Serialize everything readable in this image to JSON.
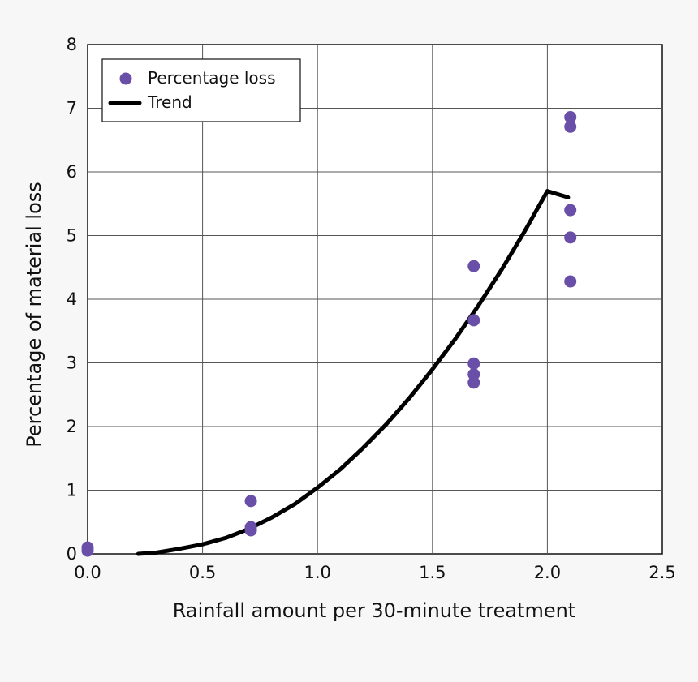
{
  "chart_data": {
    "type": "scatter",
    "title": "",
    "xlabel": "Rainfall amount per 30-minute treatment",
    "ylabel": "Percentage of material loss",
    "xlim": [
      0,
      2.5
    ],
    "ylim": [
      0,
      8
    ],
    "x_ticks": [
      "0.0",
      "0.5",
      "1.0",
      "1.5",
      "2.0",
      "2.5"
    ],
    "x_tick_values": [
      0,
      0.5,
      1.0,
      1.5,
      2.0,
      2.5
    ],
    "y_ticks": [
      "0",
      "1",
      "2",
      "3",
      "4",
      "5",
      "6",
      "7",
      "8"
    ],
    "y_tick_values": [
      0,
      1,
      2,
      3,
      4,
      5,
      6,
      7,
      8
    ],
    "grid": true,
    "legend_position": "top-left",
    "series": [
      {
        "name": "Percentage loss",
        "kind": "scatter",
        "color": "#6a4fa8",
        "points": [
          {
            "x": 0.0,
            "y": 0.05
          },
          {
            "x": 0.0,
            "y": 0.1
          },
          {
            "x": 0.71,
            "y": 0.83
          },
          {
            "x": 0.71,
            "y": 0.42
          },
          {
            "x": 0.71,
            "y": 0.37
          },
          {
            "x": 1.68,
            "y": 4.52
          },
          {
            "x": 1.68,
            "y": 3.67
          },
          {
            "x": 1.68,
            "y": 2.99
          },
          {
            "x": 1.68,
            "y": 2.82
          },
          {
            "x": 1.68,
            "y": 2.69
          },
          {
            "x": 2.1,
            "y": 6.86
          },
          {
            "x": 2.1,
            "y": 6.71
          },
          {
            "x": 2.1,
            "y": 5.4
          },
          {
            "x": 2.1,
            "y": 4.97
          },
          {
            "x": 2.1,
            "y": 4.28
          }
        ]
      },
      {
        "name": "Trend",
        "kind": "line",
        "color": "#000000",
        "points": [
          {
            "x": 0.22,
            "y": 0.0
          },
          {
            "x": 0.3,
            "y": 0.02
          },
          {
            "x": 0.4,
            "y": 0.08
          },
          {
            "x": 0.5,
            "y": 0.15
          },
          {
            "x": 0.6,
            "y": 0.25
          },
          {
            "x": 0.7,
            "y": 0.39
          },
          {
            "x": 0.8,
            "y": 0.57
          },
          {
            "x": 0.9,
            "y": 0.78
          },
          {
            "x": 1.0,
            "y": 1.04
          },
          {
            "x": 1.1,
            "y": 1.33
          },
          {
            "x": 1.2,
            "y": 1.67
          },
          {
            "x": 1.3,
            "y": 2.04
          },
          {
            "x": 1.4,
            "y": 2.45
          },
          {
            "x": 1.5,
            "y": 2.9
          },
          {
            "x": 1.6,
            "y": 3.38
          },
          {
            "x": 1.7,
            "y": 3.9
          },
          {
            "x": 1.8,
            "y": 4.46
          },
          {
            "x": 1.9,
            "y": 5.06
          },
          {
            "x": 2.0,
            "y": 5.7
          },
          {
            "x": 2.09,
            "y": 5.6
          }
        ]
      }
    ]
  }
}
